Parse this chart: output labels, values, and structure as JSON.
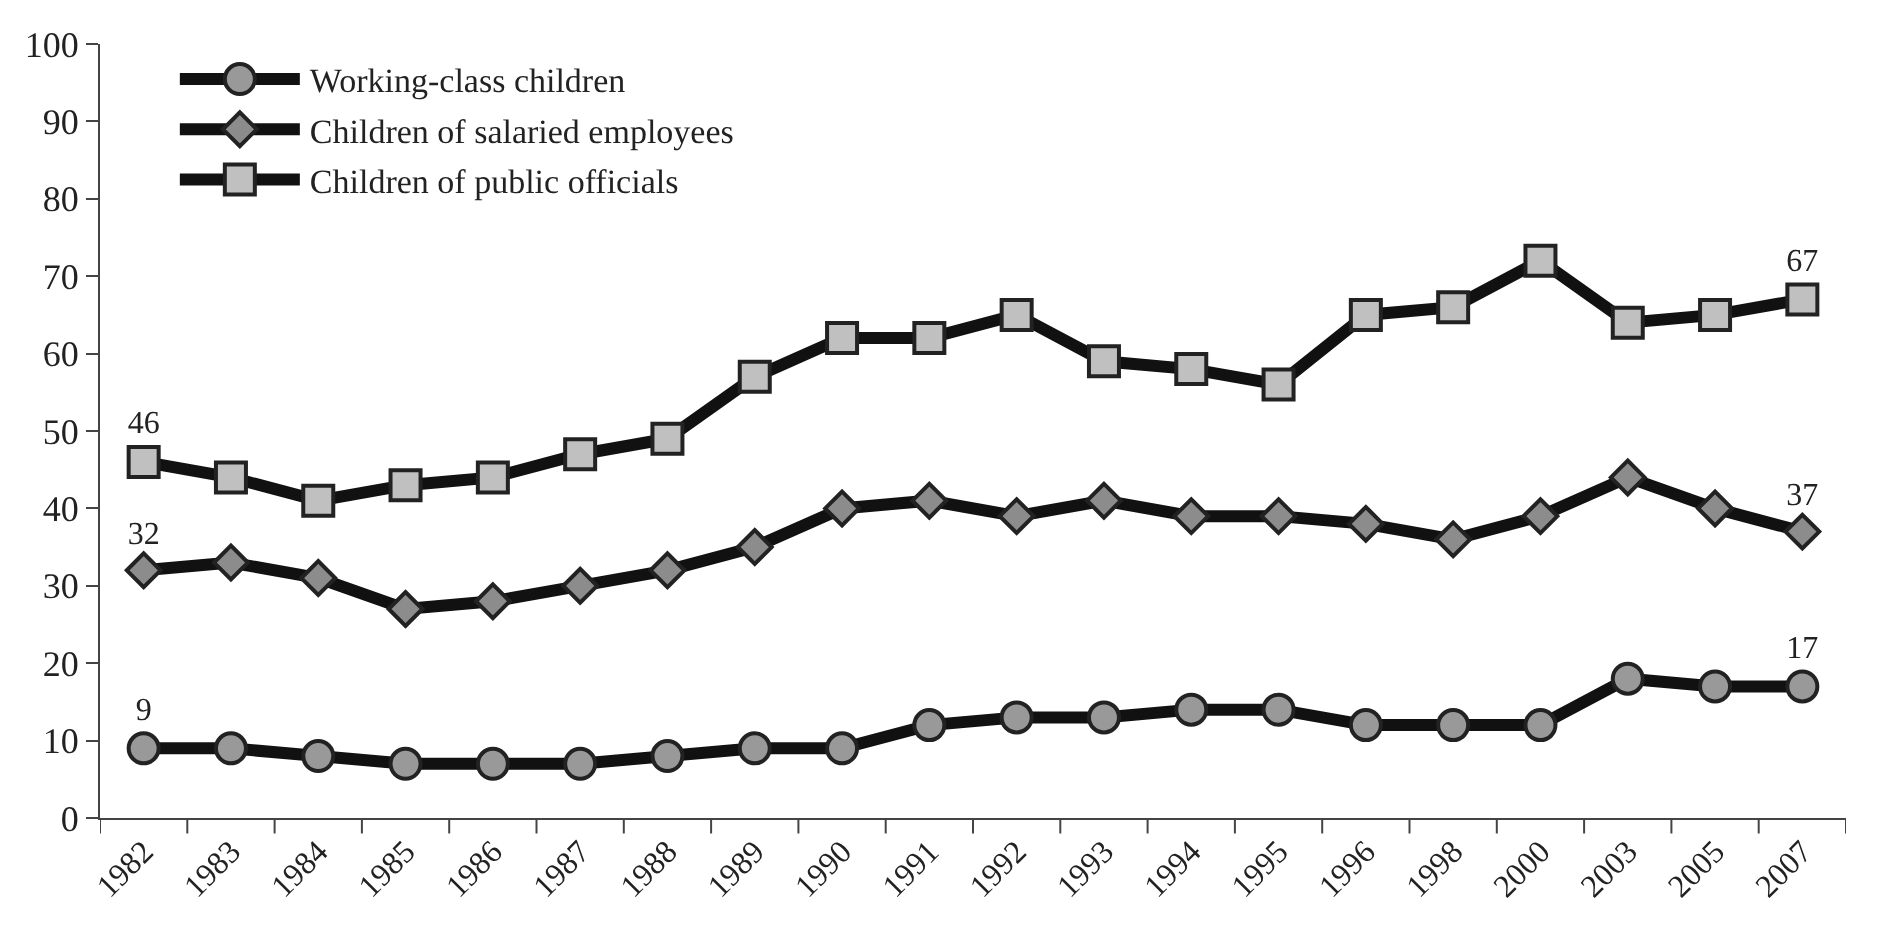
{
  "chart_data": {
    "type": "line",
    "categories": [
      "1982",
      "1983",
      "1984",
      "1985",
      "1986",
      "1987",
      "1988",
      "1989",
      "1990",
      "1991",
      "1992",
      "1993",
      "1994",
      "1995",
      "1996",
      "1998",
      "2000",
      "2003",
      "2005",
      "2007"
    ],
    "series": [
      {
        "name": "Working-class children",
        "color": "#999999",
        "marker": "circle",
        "values": [
          9,
          9,
          8,
          7,
          7,
          7,
          8,
          9,
          9,
          12,
          13,
          13,
          14,
          14,
          12,
          12,
          12,
          18,
          17,
          17
        ],
        "value_labels": [
          "9",
          null,
          null,
          null,
          null,
          null,
          null,
          null,
          null,
          null,
          null,
          null,
          null,
          null,
          null,
          null,
          null,
          null,
          null,
          "17"
        ]
      },
      {
        "name": "Children of salaried employees",
        "color": "#8c8c8c",
        "marker": "diamond",
        "values": [
          32,
          33,
          31,
          27,
          28,
          30,
          32,
          35,
          40,
          41,
          39,
          41,
          39,
          39,
          38,
          36,
          39,
          44,
          40,
          37
        ],
        "value_labels": [
          "32",
          null,
          null,
          null,
          null,
          null,
          null,
          null,
          null,
          null,
          null,
          null,
          null,
          null,
          null,
          null,
          null,
          null,
          null,
          "37"
        ]
      },
      {
        "name": "Children of public officials",
        "color": "#c0c0c0",
        "marker": "square",
        "values": [
          46,
          44,
          41,
          43,
          44,
          47,
          49,
          57,
          62,
          62,
          65,
          59,
          58,
          56,
          65,
          66,
          72,
          64,
          65,
          67
        ],
        "value_labels": [
          "46",
          null,
          null,
          null,
          null,
          null,
          null,
          null,
          null,
          null,
          null,
          null,
          null,
          null,
          null,
          null,
          null,
          null,
          null,
          "67"
        ]
      }
    ],
    "ylim": [
      0,
      100
    ],
    "yticks": [
      0,
      10,
      20,
      30,
      40,
      50,
      60,
      70,
      80,
      90,
      100
    ],
    "legend": "top left",
    "line_style": "solid"
  }
}
